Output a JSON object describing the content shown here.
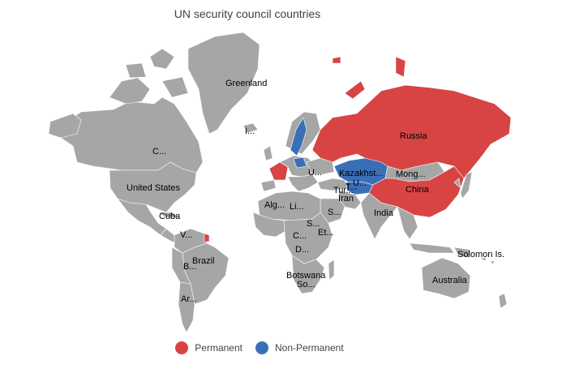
{
  "map": {
    "title": "UN security council countries",
    "colors": {
      "land": "#a6a6a6",
      "permanent": "#d84444",
      "non_permanent": "#3a6fb8"
    },
    "labels": {
      "greenland": "Greenland",
      "iceland": "I...",
      "canada": "C...",
      "usa": "United States",
      "cuba": "Cuba",
      "venezuela": "V...",
      "brazil": "Brazil",
      "bolivia": "B...",
      "argentina": "Ar...",
      "russia": "Russia",
      "ukraine": "U...",
      "kazakhstan": "Kazakhst...",
      "turkmenistan": "T...",
      "uzbekistan": "U...",
      "mongolia": "Mong...",
      "china": "China",
      "turkey": "Tur...",
      "iran": "Iran",
      "saudi": "S...",
      "india": "India",
      "algeria": "Alg...",
      "libya": "Li...",
      "sudan": "S...",
      "ethiopia": "Et...",
      "drc": "D...",
      "car": "C...",
      "botswana": "Botswana",
      "south_africa": "So...",
      "solomon": "Solomon Is.",
      "australia": "Australia"
    },
    "legend": [
      {
        "label": "Permanent",
        "color": "#d84444"
      },
      {
        "label": "Non-Permanent",
        "color": "#3a6fb8"
      }
    ]
  }
}
